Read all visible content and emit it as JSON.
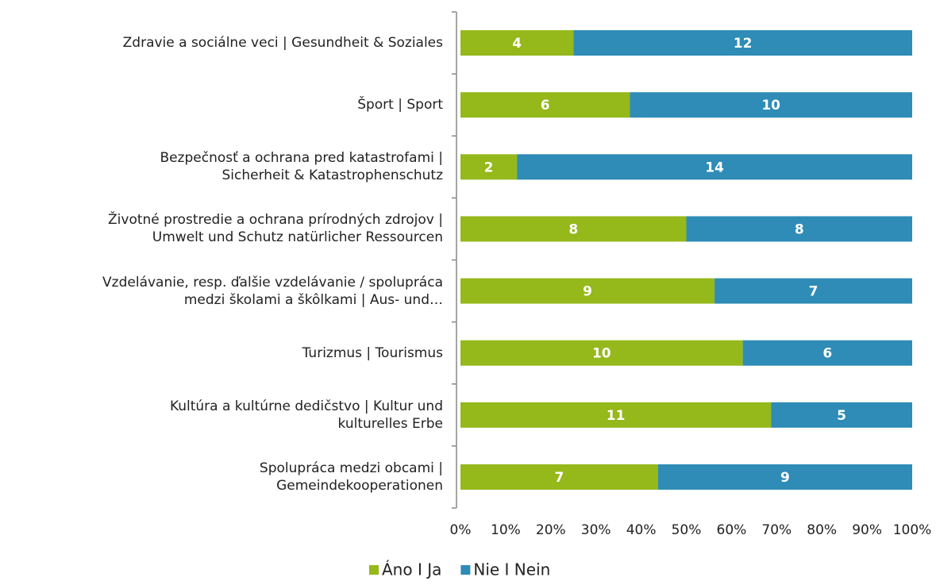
{
  "chart_data": {
    "type": "bar",
    "orientation": "horizontal",
    "stacked": true,
    "percent": true,
    "categories": [
      "Zdravie a sociálne veci | Gesundheit & Soziales",
      "Šport | Sport",
      "Bezpečnosť a ochrana pred katastrofami |\nSicherheit & Katastrophenschutz",
      "Životné prostredie a ochrana prírodných zdrojov |\nUmwelt und Schutz natürlicher Ressourcen",
      "Vzdelávanie, resp. ďalšie vzdelávanie / spolupráca\nmedzi školami a škôlkami | Aus- und…",
      "Turizmus | Tourismus",
      "Kultúra a kultúrne dedičstvo | Kultur und\nkulturelles Erbe",
      "Spolupráca medzi obcami |\nGemeindekooperationen"
    ],
    "series": [
      {
        "name": "Áno I Ja",
        "color": "#95b81a",
        "values": [
          4,
          6,
          2,
          8,
          9,
          10,
          11,
          7
        ]
      },
      {
        "name": "Nie I Nein",
        "color": "#2e8cb6",
        "values": [
          12,
          10,
          14,
          8,
          7,
          6,
          5,
          9
        ]
      }
    ],
    "xlim": [
      0,
      100
    ],
    "xticks": [
      {
        "value": 0,
        "label": "0%"
      },
      {
        "value": 10,
        "label": "10%"
      },
      {
        "value": 20,
        "label": "20%"
      },
      {
        "value": 30,
        "label": "30%"
      },
      {
        "value": 40,
        "label": "40%"
      },
      {
        "value": 50,
        "label": "50%"
      },
      {
        "value": 60,
        "label": "60%"
      },
      {
        "value": 70,
        "label": "70%"
      },
      {
        "value": 80,
        "label": "80%"
      },
      {
        "value": 90,
        "label": "90%"
      },
      {
        "value": 100,
        "label": "100%"
      }
    ],
    "legend": "bottom"
  }
}
